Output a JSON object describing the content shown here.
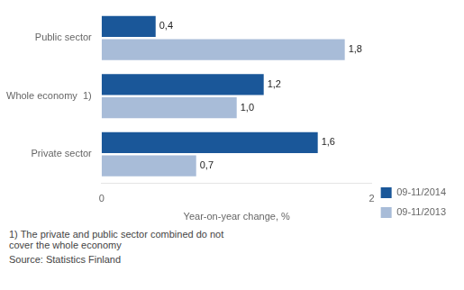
{
  "chart_data": {
    "type": "bar",
    "orientation": "horizontal",
    "categories": [
      "Public sector",
      "Whole economy  1)",
      "Private sector"
    ],
    "series": [
      {
        "name": "09-11/2014",
        "color": "#1a5799",
        "values": [
          0.4,
          1.2,
          1.6
        ],
        "value_labels": [
          "0,4",
          "1,2",
          "1,6"
        ]
      },
      {
        "name": "09-11/2013",
        "color": "#a8bcd8",
        "values": [
          1.8,
          1.0,
          0.7
        ],
        "value_labels": [
          "1,8",
          "1,0",
          "0,7"
        ]
      }
    ],
    "xlim": [
      0,
      2.0
    ],
    "xticks": [
      0,
      2
    ],
    "xlabel": "Year-on-year change, %",
    "annotations": [
      "1)  The private and public sector combined do not\ncover the whole economy",
      "Source: Statistics Finland"
    ],
    "data_labels": true,
    "grid": false,
    "legend": "right"
  }
}
